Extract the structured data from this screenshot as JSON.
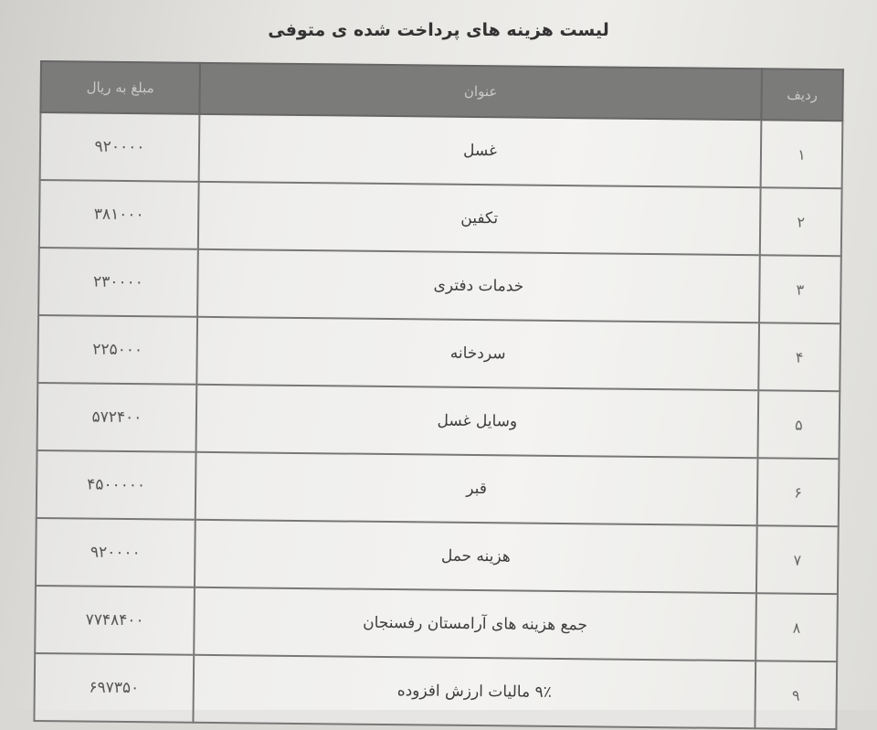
{
  "title": "لیست هزینه های پرداخت شده ی متوفی",
  "columns": {
    "row": "ردیف",
    "subject": "عنوان",
    "amount": "مبلغ به ریال"
  },
  "rows": [
    {
      "row": "۱",
      "subject": "غسل",
      "amount": "۹۲۰۰۰۰"
    },
    {
      "row": "۲",
      "subject": "تکفین",
      "amount": "۳۸۱۰۰۰"
    },
    {
      "row": "۳",
      "subject": "خدمات دفتری",
      "amount": "۲۳۰۰۰۰"
    },
    {
      "row": "۴",
      "subject": "سردخانه",
      "amount": "۲۲۵۰۰۰"
    },
    {
      "row": "۵",
      "subject": "وسایل غسل",
      "amount": "۵۷۲۴۰۰"
    },
    {
      "row": "۶",
      "subject": "قبر",
      "amount": "۴۵۰۰۰۰۰"
    },
    {
      "row": "۷",
      "subject": "هزینه حمل",
      "amount": "۹۲۰۰۰۰"
    },
    {
      "row": "۸",
      "subject": "جمع هزینه های آرامستان رفسنجان",
      "amount": "۷۷۴۸۴۰۰"
    },
    {
      "row": "۹",
      "subject": "۹٪ مالیات ارزش افزوده",
      "amount": "۶۹۷۳۵۰"
    }
  ]
}
